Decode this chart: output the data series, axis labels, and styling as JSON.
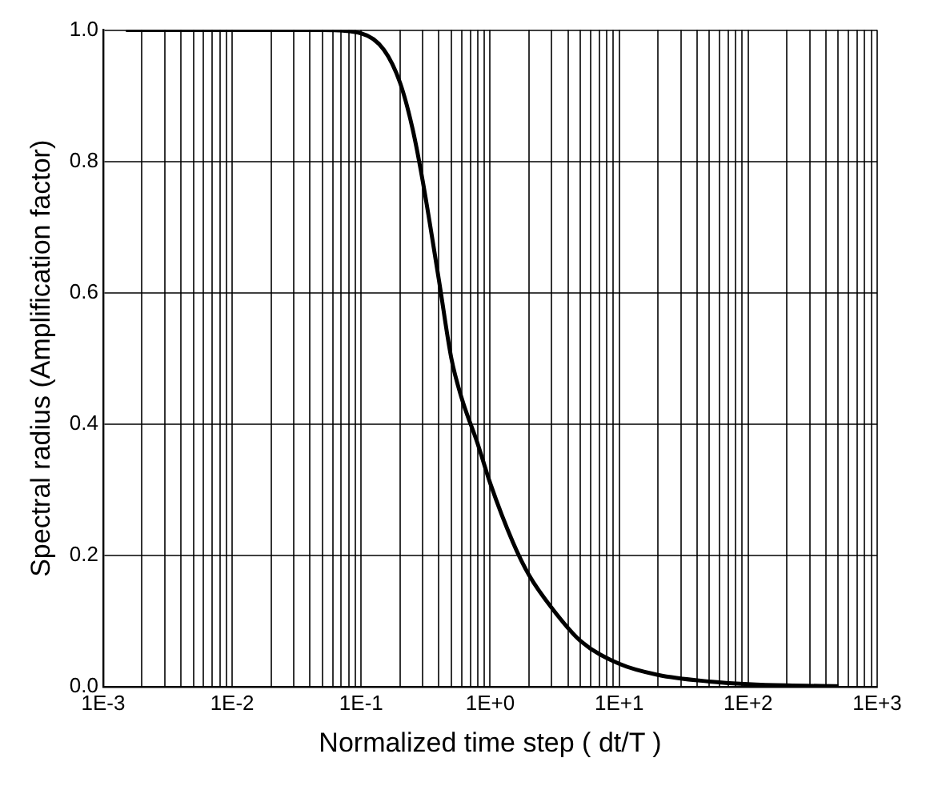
{
  "chart_data": {
    "type": "line",
    "xlabel": "Normalized time step ( dt/T )",
    "ylabel": "Spectral radius (Amplification factor)",
    "x": [
      0.0015,
      0.01,
      0.05,
      0.1,
      0.15,
      0.2,
      0.25,
      0.3,
      0.4,
      0.5,
      0.6,
      0.8,
      1,
      1.5,
      2,
      3,
      5,
      10,
      20,
      50,
      100,
      200,
      500
    ],
    "series": [
      {
        "color": "#000000",
        "values": [
          1,
          1,
          1,
          0.995,
          0.97,
          0.92,
          0.85,
          0.77,
          0.62,
          0.5,
          0.44,
          0.37,
          0.31,
          0.22,
          0.17,
          0.12,
          0.07,
          0.035,
          0.018,
          0.008,
          0.004,
          0.002,
          0.001
        ]
      }
    ],
    "log": "x",
    "xlim": [
      0.001,
      1000
    ],
    "xticks": [
      {
        "value": 0.001,
        "label": "1E-3"
      },
      {
        "value": 0.002,
        "label": null
      },
      {
        "value": 0.003,
        "label": null
      },
      {
        "value": 0.004,
        "label": null
      },
      {
        "value": 0.005,
        "label": null
      },
      {
        "value": 0.006,
        "label": null
      },
      {
        "value": 0.007,
        "label": null
      },
      {
        "value": 0.008,
        "label": null
      },
      {
        "value": 0.009,
        "label": null
      },
      {
        "value": 0.01,
        "label": "1E-2"
      },
      {
        "value": 0.02,
        "label": null
      },
      {
        "value": 0.03,
        "label": null
      },
      {
        "value": 0.04,
        "label": null
      },
      {
        "value": 0.05,
        "label": null
      },
      {
        "value": 0.06,
        "label": null
      },
      {
        "value": 0.07,
        "label": null
      },
      {
        "value": 0.08,
        "label": null
      },
      {
        "value": 0.09,
        "label": null
      },
      {
        "value": 0.1,
        "label": "1E-1"
      },
      {
        "value": 0.2,
        "label": null
      },
      {
        "value": 0.3,
        "label": null
      },
      {
        "value": 0.4,
        "label": null
      },
      {
        "value": 0.5,
        "label": null
      },
      {
        "value": 0.6,
        "label": null
      },
      {
        "value": 0.7,
        "label": null
      },
      {
        "value": 0.8,
        "label": null
      },
      {
        "value": 0.9,
        "label": null
      },
      {
        "value": 1,
        "label": "1E+0"
      },
      {
        "value": 2,
        "label": null
      },
      {
        "value": 3,
        "label": null
      },
      {
        "value": 4,
        "label": null
      },
      {
        "value": 5,
        "label": null
      },
      {
        "value": 6,
        "label": null
      },
      {
        "value": 7,
        "label": null
      },
      {
        "value": 8,
        "label": null
      },
      {
        "value": 9,
        "label": null
      },
      {
        "value": 10,
        "label": "1E+1"
      },
      {
        "value": 20,
        "label": null
      },
      {
        "value": 30,
        "label": null
      },
      {
        "value": 40,
        "label": null
      },
      {
        "value": 50,
        "label": null
      },
      {
        "value": 60,
        "label": null
      },
      {
        "value": 70,
        "label": null
      },
      {
        "value": 80,
        "label": null
      },
      {
        "value": 90,
        "label": null
      },
      {
        "value": 100,
        "label": "1E+2"
      },
      {
        "value": 200,
        "label": null
      },
      {
        "value": 300,
        "label": null
      },
      {
        "value": 400,
        "label": null
      },
      {
        "value": 500,
        "label": null
      },
      {
        "value": 600,
        "label": null
      },
      {
        "value": 700,
        "label": null
      },
      {
        "value": 800,
        "label": null
      },
      {
        "value": 900,
        "label": null
      },
      {
        "value": 1000,
        "label": "1E+3"
      }
    ],
    "ylim": [
      0,
      1
    ],
    "yticks": [
      {
        "value": 0,
        "label": "0.0"
      },
      {
        "value": 0.2,
        "label": "0.2"
      },
      {
        "value": 0.4,
        "label": "0.4"
      },
      {
        "value": 0.6,
        "label": "0.6"
      },
      {
        "value": 0.8,
        "label": "0.8"
      },
      {
        "value": 1,
        "label": "1.0"
      }
    ],
    "grid": true,
    "legend": false,
    "marker": "none",
    "line_style": "solid"
  }
}
